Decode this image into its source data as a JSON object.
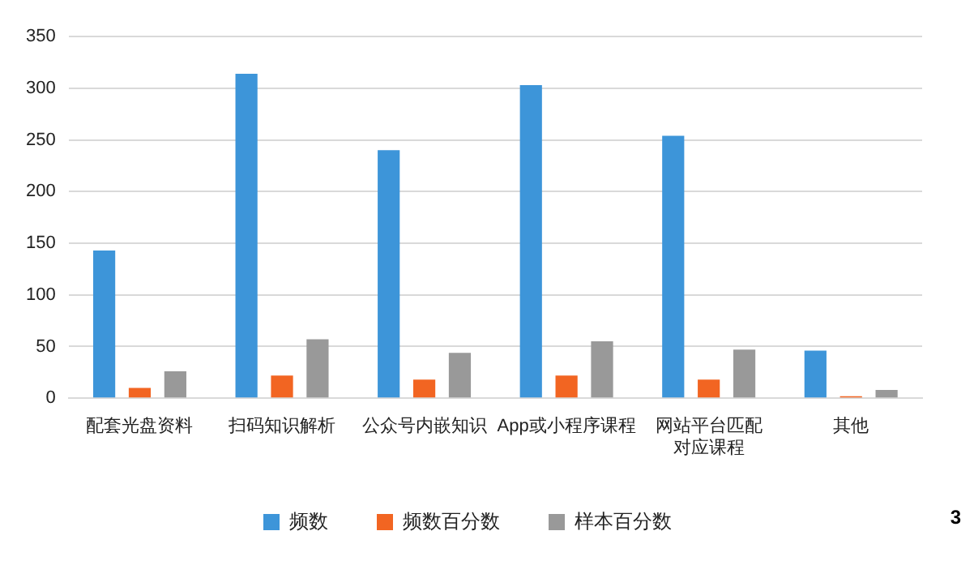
{
  "chart_data": {
    "type": "bar",
    "categories": [
      "配套光盘资料",
      "扫码知识解析",
      "公众号内嵌知识",
      "App或小程序课程",
      "网站平台匹配对应课程",
      "其他"
    ],
    "series": [
      {
        "name": "频数",
        "color": "#3d95d9",
        "values": [
          143,
          314,
          240,
          303,
          254,
          46
        ]
      },
      {
        "name": "频数百分数",
        "color": "#f26522",
        "values": [
          10,
          22,
          18,
          22,
          18,
          2
        ]
      },
      {
        "name": "样本百分数",
        "color": "#999999",
        "values": [
          26,
          57,
          44,
          55,
          47,
          8
        ]
      }
    ],
    "ylim": [
      0,
      350
    ],
    "yticks": [
      0,
      50,
      100,
      150,
      200,
      250,
      300,
      350
    ],
    "grid": "y",
    "legend": "bottom",
    "annotations": [
      "3"
    ]
  }
}
